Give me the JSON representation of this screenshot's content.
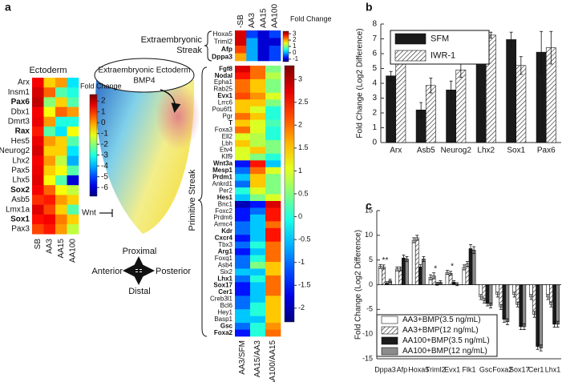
{
  "diagram": {
    "source_labels": [
      "Extraembryonic Ectoderm",
      "BMP4"
    ],
    "signal": "Wnt",
    "proximal": "Proximal",
    "distal": "Distal",
    "anterior": "Anterior",
    "posterior": "Posterior"
  },
  "chart_data": [
    {
      "type": "heatmap",
      "panel": "a",
      "title": "Ectoderm",
      "colorbar_title": "Fold Change",
      "rows": [
        "Arx",
        "Insm1",
        "Pax6",
        "Dbx1",
        "Dmrt3",
        "Rax",
        "Hes5",
        "Neurog2",
        "Lhx2",
        "Pax5",
        "Lhx5",
        "Sox2",
        "Asb5",
        "Lmx1a",
        "Sox1",
        "Pax3"
      ],
      "label_colors": [
        "#e41a1c",
        "#e41a1c",
        "#e41a1c",
        "#e41a1c",
        "#e41a1c",
        "#e41a1c",
        "#e41a1c",
        "#e41a1c",
        "#e41a1c",
        "#e41a1c",
        "#e41a1c",
        "#111111",
        "#e41a1c",
        "#e41a1c",
        "#e41a1c",
        "#e41a1c"
      ],
      "bold": [
        false,
        false,
        true,
        false,
        false,
        true,
        false,
        false,
        false,
        false,
        false,
        true,
        false,
        false,
        true,
        false
      ],
      "columns": [
        "SB",
        "AA3",
        "AA15",
        "AA100"
      ],
      "values": [
        [
          1.5,
          -0.5,
          0,
          -3.5
        ],
        [
          1.8,
          0.5,
          -2.5,
          -3
        ],
        [
          2,
          -2,
          -0.5,
          -2.5
        ],
        [
          1.5,
          -1,
          0.5,
          0
        ],
        [
          1.6,
          0,
          -3,
          -3
        ],
        [
          1.2,
          -2.5,
          -3.5,
          -1
        ],
        [
          1.6,
          0,
          -0.5,
          -2.5
        ],
        [
          1.8,
          -0.5,
          -0.5,
          -3.5
        ],
        [
          1.5,
          0,
          -1.5,
          -4
        ],
        [
          1.6,
          -0.5,
          -1,
          -2.5
        ],
        [
          1.7,
          -1,
          -2.5,
          -6
        ],
        [
          1.5,
          0.5,
          -1,
          -1.5
        ],
        [
          1,
          1.2,
          0,
          -0.5
        ],
        [
          1.7,
          0.8,
          -0.5,
          -2.5
        ],
        [
          1.3,
          1.5,
          0.3,
          -0.5
        ],
        [
          0.8,
          1.2,
          0,
          -1.5
        ]
      ],
      "zlim": [
        -6.8,
        2.6
      ],
      "zticks": [
        2,
        1,
        0,
        -1,
        -2,
        -3,
        -4,
        -5,
        -6
      ]
    },
    {
      "type": "heatmap",
      "title": [
        "Extraembryonic",
        "Streak"
      ],
      "colorbar_title": "Fold Change",
      "rows": [
        "Hoxa5",
        "Triml2",
        "Afp",
        "Dppa3"
      ],
      "label_colors": [
        "#e41a1c",
        "#e41a1c",
        "#e41a1c",
        "#e41a1c"
      ],
      "bold": [
        false,
        false,
        true,
        true
      ],
      "columns": [
        "-SB",
        "AA3",
        "AA15",
        "AA100"
      ],
      "values": [
        [
          3,
          -0.5,
          -1,
          -0.5
        ],
        [
          3,
          0,
          -1,
          -1
        ],
        [
          2.5,
          0,
          -1,
          -0.5
        ],
        [
          2,
          0,
          -1,
          -0.5
        ]
      ],
      "zlim": [
        -1.4,
        3.4
      ],
      "zticks": [
        3,
        2,
        1,
        0,
        -1
      ]
    },
    {
      "type": "heatmap",
      "title": "Primitive Streak",
      "rows": [
        "Fgf8",
        "Nodal",
        "Epha1",
        "Rab25",
        "Evx1",
        "Lrrc6",
        "Pou6f1",
        "Pgr",
        "T",
        "Foxa3",
        "Ell2",
        "Lbh",
        "Etv4",
        "Klf9",
        "Wnt3a",
        "Mesp1",
        "Prdm1",
        "Ankrd1",
        "Per2",
        "Hes1",
        "Bnc1",
        "Foxc2",
        "Prdm6",
        "Armc4",
        "Kdr",
        "Cxcr4",
        "Tbx3",
        "Arg1",
        "Foxq1",
        "Asb4",
        "Six2",
        "Lhx1",
        "Sox17",
        "Cer1",
        "Creb3l1",
        "Bcl6",
        "Hey1",
        "Basp1",
        "Gsc",
        "Foxa2"
      ],
      "label_colors": [
        "#e41a1c",
        "#111111",
        "#111111",
        "#111111",
        "#111111",
        "#e41a1c",
        "#111111",
        "#e41a1c",
        "#111111",
        "#e41a1c",
        "#111111",
        "#111111",
        "#111111",
        "#111111",
        "#111111",
        "#111111",
        "#111111",
        "#e41a1c",
        "#111111",
        "#111111",
        "#e41a1c",
        "#111111",
        "#e41a1c",
        "#e41a1c",
        "#111111",
        "#111111",
        "#111111",
        "#e41a1c",
        "#111111",
        "#111111",
        "#111111",
        "#111111",
        "#111111",
        "#111111",
        "#111111",
        "#e41a1c",
        "#111111",
        "#111111",
        "#111111",
        "#111111"
      ],
      "bold": [
        true,
        true,
        false,
        false,
        true,
        false,
        false,
        false,
        true,
        false,
        false,
        false,
        false,
        false,
        true,
        true,
        true,
        false,
        false,
        true,
        false,
        false,
        false,
        false,
        true,
        true,
        false,
        true,
        false,
        false,
        false,
        true,
        true,
        true,
        false,
        false,
        false,
        false,
        true,
        true
      ],
      "columns": [
        "AA3/SFM",
        "AA15/AA3",
        "AA100/AA15"
      ],
      "values": [
        [
          2.8,
          2,
          0.5
        ],
        [
          2.5,
          2,
          0.8
        ],
        [
          2,
          1.5,
          0.5
        ],
        [
          2,
          1.5,
          0.5
        ],
        [
          2.2,
          1.8,
          1
        ],
        [
          1.5,
          1.5,
          0.5
        ],
        [
          1.5,
          1,
          0
        ],
        [
          2,
          1.5,
          0
        ],
        [
          1.5,
          1,
          0.2
        ],
        [
          2,
          1,
          0
        ],
        [
          1,
          0.8,
          0
        ],
        [
          1.5,
          0.8,
          0.5
        ],
        [
          1,
          1.5,
          0.5
        ],
        [
          1,
          0.5,
          0
        ],
        [
          -1.5,
          2.5,
          -0.5
        ],
        [
          -1,
          2,
          1
        ],
        [
          -0.5,
          1.5,
          0.5
        ],
        [
          -1,
          1.5,
          0.5
        ],
        [
          0,
          1,
          0.5
        ],
        [
          -0.5,
          0.5,
          1
        ],
        [
          -2,
          -1.5,
          2.8
        ],
        [
          -1.5,
          -1,
          2.5
        ],
        [
          -1.5,
          -0.5,
          2.5
        ],
        [
          -1,
          -0.5,
          2
        ],
        [
          -1,
          -0.5,
          2.5
        ],
        [
          -1.5,
          -0.5,
          2.5
        ],
        [
          -1,
          0,
          2
        ],
        [
          -1.5,
          -0.5,
          2
        ],
        [
          -1,
          0,
          2
        ],
        [
          -1,
          0.5,
          1.5
        ],
        [
          -0.5,
          -0.5,
          1.5
        ],
        [
          -1,
          0,
          2
        ],
        [
          -1.5,
          -0.5,
          2
        ],
        [
          -1.5,
          -0.5,
          2
        ],
        [
          -1,
          -0.5,
          1.5
        ],
        [
          -1,
          0,
          1.5
        ],
        [
          -0.5,
          0,
          1.5
        ],
        [
          -0.5,
          -0.5,
          1.5
        ],
        [
          -1,
          0,
          1.8
        ],
        [
          -1.5,
          0,
          2
        ]
      ],
      "zlim": [
        -2.3,
        3.3
      ],
      "zticks": [
        3,
        2.5,
        2,
        1.5,
        1,
        0.5,
        0,
        -0.5,
        -1,
        -1.5,
        -2
      ]
    },
    {
      "type": "bar",
      "panel": "b",
      "ylabel": "Fold Change (Log2 Difference)",
      "categories": [
        "Arx",
        "Asb5",
        "Neurog2",
        "Lhx2",
        "Sox1",
        "Pax6"
      ],
      "series": [
        {
          "name": "SFM",
          "color": "#1a1a1a",
          "values": [
            4.5,
            2.2,
            3.55,
            5.4,
            6.95,
            6.1
          ],
          "errors": [
            0.3,
            0.5,
            0.6,
            0.1,
            0.5,
            1.4
          ]
        },
        {
          "name": "IWR-1",
          "color": "#ffffff",
          "hatch": true,
          "values": [
            5.85,
            3.85,
            4.9,
            7.25,
            5.2,
            6.4
          ],
          "errors": [
            0.2,
            0.5,
            0.5,
            0.2,
            0.6,
            1.1
          ]
        }
      ],
      "ylim": [
        0,
        8
      ],
      "yticks": [
        0,
        1,
        2,
        3,
        4,
        5,
        6,
        7,
        8
      ]
    },
    {
      "type": "bar",
      "panel": "c",
      "ylabel": "Fold Change (Log2 Difference)",
      "categories": [
        "Dppa3",
        "Afp",
        "Hoxa5",
        "Triml2",
        "Evx1",
        "Flk1",
        "Gsc",
        "Foxa2",
        "Sox17",
        "Cer1",
        "Lhx1"
      ],
      "series": [
        {
          "name": "AA3+BMP(3.5 ng/mL)",
          "color": "#ffffff",
          "values": [
            3.7,
            3.2,
            9,
            1.5,
            2.5,
            3.5,
            -2.5,
            -2,
            -2,
            -2.5,
            -2.5
          ],
          "errors": [
            0.4,
            0.4,
            0.5,
            0.5,
            0.4,
            0.5,
            0.5,
            0.5,
            0.5,
            0.5,
            0.5
          ]
        },
        {
          "name": "AA3+BMP(12 ng/mL)",
          "color": "#ffffff",
          "hatch": true,
          "values": [
            3.6,
            3.2,
            9.5,
            1.8,
            2.3,
            4.2,
            -3.2,
            -4.5,
            -4,
            -6,
            -4
          ],
          "errors": [
            0.4,
            0.4,
            0.5,
            0.6,
            0.4,
            0.5,
            0.5,
            0.5,
            0.5,
            0.6,
            0.5
          ]
        },
        {
          "name": "AA100+BMP(3.5 ng/mL)",
          "color": "#1a1a1a",
          "values": [
            0.3,
            5.4,
            3.6,
            0.2,
            0.5,
            7.3,
            -3.8,
            -7,
            -8.5,
            -12.5,
            -8
          ],
          "errors": [
            0.3,
            0.6,
            0.5,
            0.3,
            0.3,
            0.8,
            0.5,
            0.6,
            0.6,
            0.6,
            0.6
          ]
        },
        {
          "name": "AA100+BMP(12 ng/mL)",
          "color": "#8c8c8c",
          "values": [
            0.8,
            5.2,
            5.2,
            0.5,
            0.1,
            7,
            -4.2,
            -7.5,
            -8.5,
            -12.8,
            -8
          ],
          "errors": [
            0.3,
            0.5,
            0.5,
            0.3,
            0.3,
            0.7,
            0.5,
            0.6,
            0.6,
            0.6,
            0.6
          ]
        }
      ],
      "annotations": [
        {
          "text": "**",
          "category": "Dppa3"
        },
        {
          "text": "*",
          "category": "Triml2"
        },
        {
          "text": "*",
          "category": "Evx1"
        }
      ],
      "ylim": [
        -15,
        15
      ],
      "yticks": [
        -15,
        -10,
        -5,
        0,
        5,
        10,
        15
      ]
    }
  ]
}
